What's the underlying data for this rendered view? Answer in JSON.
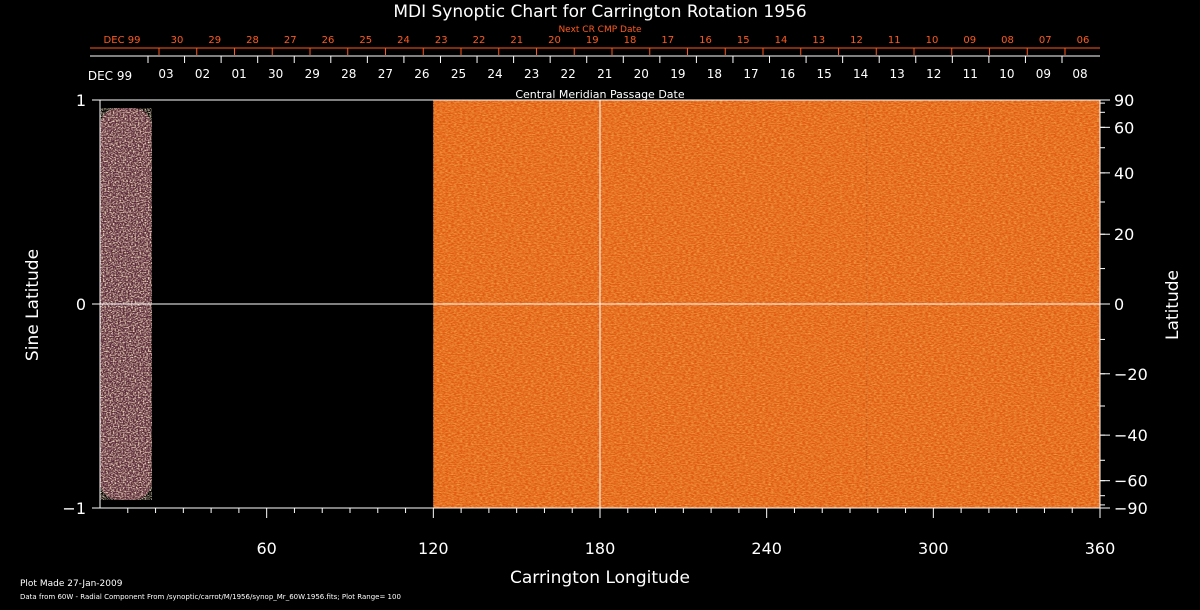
{
  "chart_data": {
    "type": "heatmap",
    "title": "MDI Synoptic Chart for Carrington Rotation 1956",
    "xlabel": "Carrington Longitude",
    "ylabel_left": "Sine Latitude",
    "ylabel_right": "Latitude",
    "top_axis_label": "Central Meridian Passage Date",
    "next_cr_label": "Next CR CMP Date",
    "xlim": [
      0,
      360
    ],
    "ylim": [
      -1,
      1
    ],
    "x_ticks": [
      60,
      120,
      180,
      240,
      300,
      360
    ],
    "y_ticks_left": [
      -1,
      0,
      1
    ],
    "y_ticks_right": [
      90,
      60,
      40,
      20,
      0,
      -20,
      -40,
      -60,
      -90
    ],
    "grid_lines": {
      "x": [
        180
      ],
      "y": [
        0
      ]
    },
    "cmp_dates": [
      "DEC 99",
      "03",
      "02",
      "01",
      "30",
      "29",
      "28",
      "27",
      "26",
      "25",
      "24",
      "23",
      "22",
      "21",
      "20",
      "19",
      "18",
      "17",
      "16",
      "15",
      "14",
      "13",
      "12",
      "11",
      "10",
      "09",
      "08"
    ],
    "next_cr_dates": [
      "DEC 99",
      "30",
      "29",
      "28",
      "27",
      "26",
      "25",
      "24",
      "23",
      "22",
      "21",
      "20",
      "19",
      "18",
      "17",
      "16",
      "15",
      "14",
      "13",
      "12",
      "11",
      "10",
      "09",
      "08",
      "07",
      "06"
    ],
    "data_coverage": [
      {
        "from": 0,
        "to": 20
      },
      {
        "from": 120,
        "to": 276
      },
      {
        "from": 276,
        "to": 360
      }
    ],
    "data_gap": {
      "from": 20,
      "to": 120
    },
    "colors": {
      "background": "#000000",
      "field": "#e05a10",
      "positive": "#ffffff",
      "negative": "#0a0a4a",
      "next_cr_text": "#ff5a1e"
    }
  },
  "footer": {
    "plot_made": "Plot Made 27-Jan-2009",
    "source": "Data from 60W - Radial Component From /synoptic/carrot/M/1956/synop_Mr_60W.1956.fits; Plot Range= 100"
  }
}
